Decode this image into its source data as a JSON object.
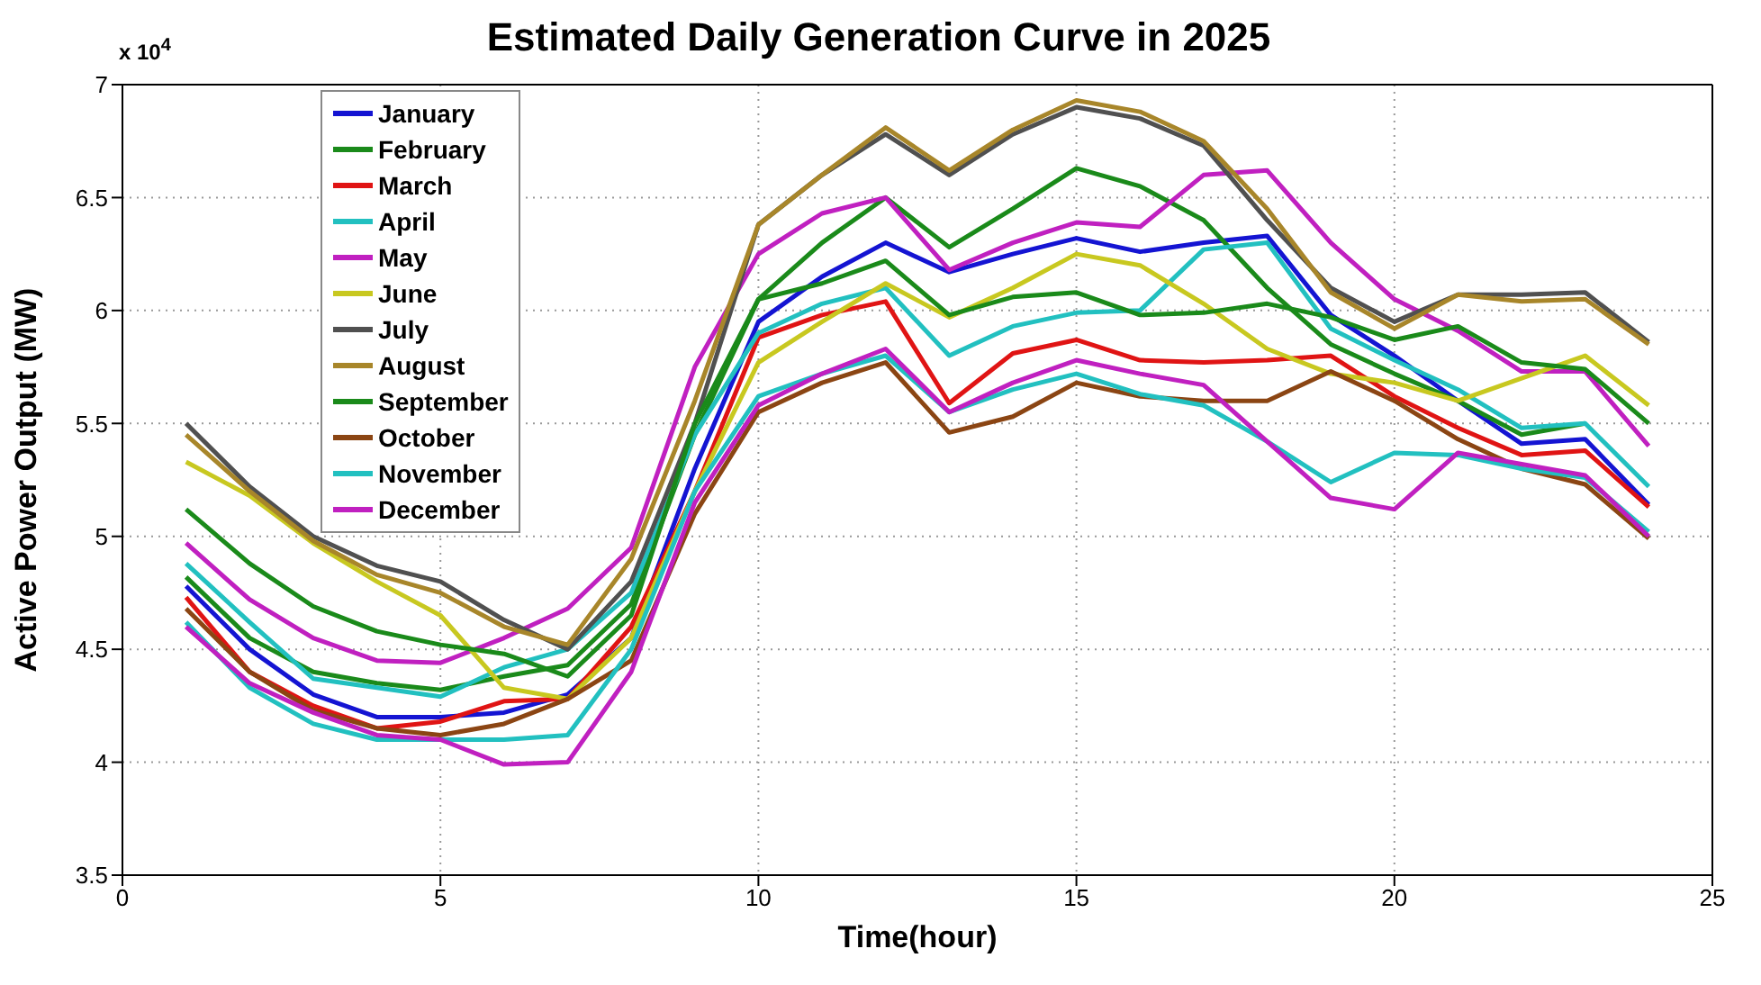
{
  "chart_data": {
    "type": "line",
    "title": "Estimated Daily Generation Curve in 2025",
    "xlabel": "Time(hour)",
    "ylabel": "Active Power Output (MW)",
    "annotations": [
      "x 10$^{4}$"
    ],
    "x": [
      1,
      2,
      3,
      4,
      5,
      6,
      7,
      8,
      9,
      10,
      11,
      12,
      13,
      14,
      15,
      16,
      17,
      18,
      19,
      20,
      21,
      22,
      23,
      24
    ],
    "xlim": [
      0,
      25
    ],
    "xticks": [
      0,
      5,
      10,
      15,
      20,
      25
    ],
    "ylim": [
      3.5,
      7
    ],
    "yticks": [
      3.5,
      4,
      4.5,
      5,
      5.5,
      6,
      6.5,
      7
    ],
    "grid": true,
    "legend": "top left",
    "series": [
      {
        "name": "January",
        "color": "#1414d2",
        "values": [
          4.78,
          4.5,
          4.3,
          4.2,
          4.2,
          4.22,
          4.3,
          4.55,
          5.3,
          5.95,
          6.15,
          6.3,
          6.17,
          6.25,
          6.32,
          6.26,
          6.3,
          6.33,
          5.98,
          5.8,
          5.6,
          5.41,
          5.43,
          5.14
        ]
      },
      {
        "name": "February",
        "color": "#1a8a1a",
        "values": [
          4.82,
          4.55,
          4.4,
          4.35,
          4.32,
          4.38,
          4.43,
          4.7,
          5.45,
          6.05,
          6.3,
          6.5,
          6.28,
          6.45,
          6.63,
          6.55,
          6.4,
          6.1,
          5.85,
          5.72,
          5.6,
          5.45,
          5.5,
          null
        ]
      },
      {
        "name": "March",
        "color": "#e01414",
        "values": [
          4.73,
          4.4,
          4.25,
          4.15,
          4.18,
          4.27,
          4.28,
          4.6,
          5.2,
          5.88,
          5.98,
          6.04,
          5.59,
          5.81,
          5.87,
          5.78,
          5.77,
          5.78,
          5.8,
          5.62,
          5.48,
          5.36,
          5.38,
          5.13
        ]
      },
      {
        "name": "April",
        "color": "#22c0c0",
        "values": [
          4.88,
          4.62,
          4.37,
          4.33,
          4.29,
          4.42,
          4.5,
          4.75,
          5.45,
          5.9,
          6.03,
          6.1,
          5.8,
          5.93,
          5.99,
          6.0,
          6.27,
          6.3,
          5.92,
          5.78,
          5.65,
          5.48,
          5.5,
          5.22
        ]
      },
      {
        "name": "May",
        "color": "#c020c0",
        "values": [
          4.97,
          4.72,
          4.55,
          4.45,
          4.44,
          4.55,
          4.68,
          4.95,
          5.75,
          6.25,
          6.43,
          6.5,
          6.18,
          6.3,
          6.39,
          6.37,
          6.6,
          6.62,
          6.3,
          6.05,
          5.91,
          5.73,
          5.73,
          5.4
        ]
      },
      {
        "name": "June",
        "color": "#c8c820",
        "values": [
          5.33,
          5.18,
          4.97,
          4.8,
          4.65,
          4.33,
          4.28,
          4.55,
          5.2,
          5.77,
          5.95,
          6.12,
          5.97,
          6.1,
          6.25,
          6.2,
          6.03,
          5.83,
          5.72,
          5.68,
          5.6,
          5.7,
          5.8,
          5.58
        ]
      },
      {
        "name": "July",
        "color": "#505050",
        "values": [
          5.5,
          5.22,
          5.0,
          4.87,
          4.8,
          4.63,
          4.5,
          4.8,
          5.5,
          6.38,
          6.6,
          6.78,
          6.6,
          6.78,
          6.9,
          6.85,
          6.73,
          6.4,
          6.1,
          5.95,
          6.07,
          6.07,
          6.08,
          5.86
        ]
      },
      {
        "name": "August",
        "color": "#a8862a",
        "values": [
          5.45,
          5.2,
          4.98,
          4.83,
          4.75,
          4.6,
          4.52,
          4.9,
          5.6,
          6.38,
          6.6,
          6.81,
          6.62,
          6.8,
          6.93,
          6.88,
          6.75,
          6.45,
          6.08,
          5.92,
          6.07,
          6.04,
          6.05,
          5.85
        ]
      },
      {
        "name": "September",
        "color": "#1a8a1a",
        "values": [
          5.12,
          4.88,
          4.69,
          4.58,
          4.52,
          4.48,
          4.38,
          4.65,
          5.5,
          6.05,
          6.12,
          6.22,
          5.98,
          6.06,
          6.08,
          5.98,
          5.99,
          6.03,
          5.97,
          5.87,
          5.93,
          5.77,
          5.74,
          5.5
        ]
      },
      {
        "name": "October",
        "color": "#8b4513",
        "values": [
          4.68,
          4.4,
          4.23,
          4.15,
          4.12,
          4.17,
          4.28,
          4.45,
          5.1,
          5.55,
          5.68,
          5.77,
          5.46,
          5.53,
          5.68,
          5.62,
          5.6,
          5.6,
          5.73,
          5.6,
          5.43,
          5.3,
          5.23,
          4.99
        ]
      },
      {
        "name": "November",
        "color": "#22c0c0",
        "values": [
          4.62,
          4.33,
          4.17,
          4.1,
          4.1,
          4.1,
          4.12,
          4.5,
          5.2,
          5.62,
          5.72,
          5.8,
          5.55,
          5.65,
          5.72,
          5.63,
          5.58,
          5.42,
          5.24,
          5.37,
          5.36,
          5.3,
          5.26,
          5.02
        ]
      },
      {
        "name": "December",
        "color": "#c020c0",
        "values": [
          4.6,
          4.35,
          4.22,
          4.12,
          4.1,
          3.99,
          4.0,
          4.4,
          5.15,
          5.58,
          5.72,
          5.83,
          5.55,
          5.68,
          5.78,
          5.72,
          5.67,
          5.42,
          5.17,
          5.12,
          5.37,
          5.32,
          5.27,
          5.0
        ]
      }
    ]
  }
}
